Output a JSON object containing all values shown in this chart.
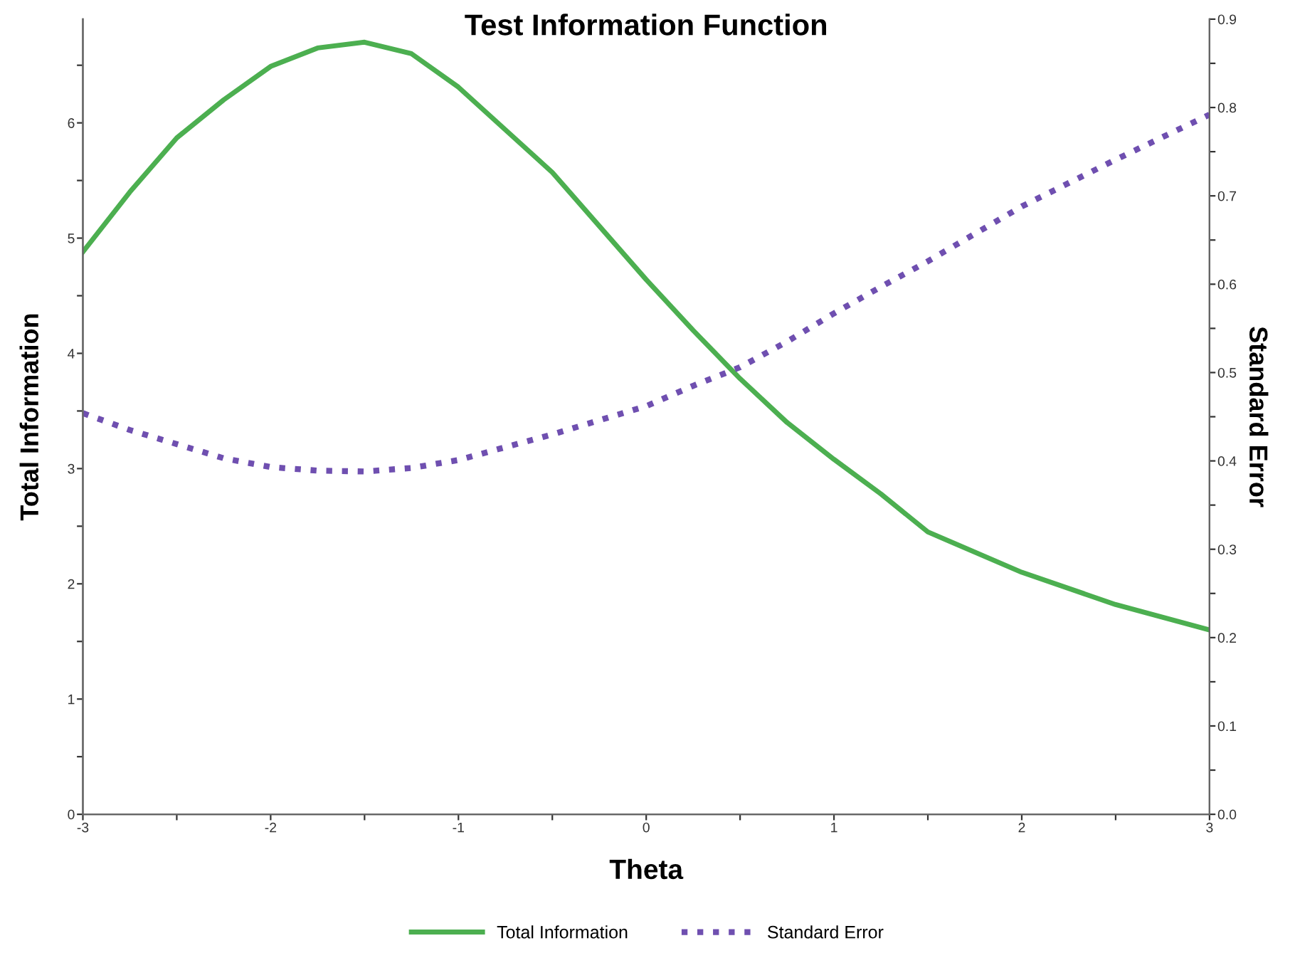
{
  "chart_data": {
    "type": "line",
    "title": "Test Information Function",
    "xlabel": "Theta",
    "ylabel": "Total Information",
    "y2label": "Standard Error",
    "x": [
      -3,
      -2.75,
      -2.5,
      -2.25,
      -2,
      -1.75,
      -1.5,
      -1.25,
      -1,
      -0.5,
      0,
      0.25,
      0.5,
      0.75,
      1,
      1.25,
      1.5,
      2,
      2.5,
      3
    ],
    "series": [
      {
        "name": "Total Information",
        "color": "#4caf50",
        "line_style": "solid",
        "values": [
          4.88,
          5.4,
          5.87,
          6.2,
          6.49,
          6.65,
          6.7,
          6.6,
          6.31,
          5.57,
          4.64,
          4.2,
          3.78,
          3.4,
          3.08,
          2.78,
          2.45,
          2.1,
          1.82,
          1.6
        ]
      },
      {
        "name": "Standard Error",
        "color": "#6f4fb0",
        "line_style": "dotted",
        "axis": "y2",
        "values": [
          0.454,
          0.435,
          0.419,
          0.403,
          0.393,
          0.389,
          0.388,
          0.392,
          0.401,
          0.43,
          0.462,
          0.485,
          0.506,
          0.535,
          0.567,
          0.597,
          0.626,
          0.688,
          0.741,
          0.792
        ]
      }
    ],
    "xlim": [
      -3,
      3
    ],
    "xticks": [
      -3,
      {
        "value": -2.5,
        "label": null
      },
      -2,
      {
        "value": -1.5,
        "label": null
      },
      -1,
      {
        "value": -0.5,
        "label": null
      },
      0,
      {
        "value": 0.5,
        "label": null
      },
      1,
      {
        "value": 1.5,
        "label": null
      },
      2,
      {
        "value": 2.5,
        "label": null
      },
      3
    ],
    "ylim": [
      0,
      6.9
    ],
    "yticks": [
      0,
      {
        "value": 0.5,
        "label": null
      },
      1,
      {
        "value": 1.5,
        "label": null
      },
      2,
      {
        "value": 2.5,
        "label": null
      },
      3,
      {
        "value": 3.5,
        "label": null
      },
      4,
      {
        "value": 4.5,
        "label": null
      },
      5,
      {
        "value": 5.5,
        "label": null
      },
      6,
      {
        "value": 6.5,
        "label": null
      }
    ],
    "y2lim": [
      0,
      0.9
    ],
    "y2ticks": [
      "0.0",
      {
        "value": 0.05,
        "label": null
      },
      0.1,
      {
        "value": 0.15,
        "label": null
      },
      0.2,
      {
        "value": 0.25,
        "label": null
      },
      0.3,
      {
        "value": 0.35,
        "label": null
      },
      0.4,
      {
        "value": 0.45,
        "label": null
      },
      0.5,
      {
        "value": 0.55,
        "label": null
      },
      0.6,
      {
        "value": 0.65,
        "label": null
      },
      0.7,
      {
        "value": 0.75,
        "label": null
      },
      0.8,
      {
        "value": 0.85,
        "label": null
      },
      0.9
    ],
    "grid": false,
    "legend": "bottom",
    "marker": "none"
  }
}
